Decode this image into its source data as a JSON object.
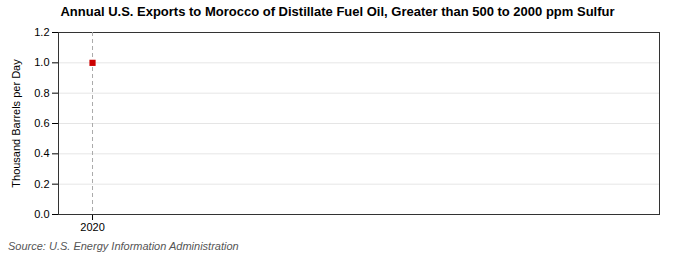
{
  "chart_data": {
    "type": "scatter",
    "title": "Annual U.S. Exports to Morocco of Distillate Fuel Oil, Greater than 500 to 2000 ppm Sulfur",
    "ylabel": "Thousand Barrels per Day",
    "source": "Source: U.S. Energy Information Administration",
    "x": [
      2020
    ],
    "values": [
      1.0
    ],
    "color": "#cc0000",
    "marker": "square",
    "xlim": [
      2019.7,
      2025.0
    ],
    "xticks": [
      2020
    ],
    "ylim": [
      0.0,
      1.2
    ],
    "yticks": [
      {
        "value": 0.0,
        "label": "0.0"
      },
      0.2,
      0.4,
      0.6,
      0.8,
      {
        "value": 1.0,
        "label": "1.0"
      },
      1.2
    ],
    "grid": true
  }
}
